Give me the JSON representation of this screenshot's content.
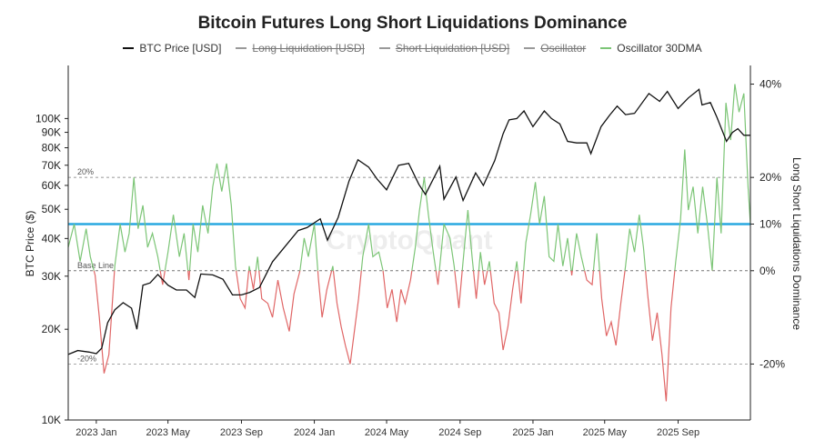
{
  "chart_data": {
    "type": "line",
    "title": "Bitcoin Futures Long Short Liquidations Dominance",
    "ylabel_left": "BTC Price ($)",
    "ylabel_right": "Long Short Liquidations Dominance",
    "left_axis_scale": "log",
    "ylim_left": [
      10000,
      150000
    ],
    "ylim_right": [
      -32,
      44
    ],
    "left_ticks": [
      {
        "value": 10000,
        "label": "10K"
      },
      {
        "value": 20000,
        "label": "20K"
      },
      {
        "value": 30000,
        "label": "30K"
      },
      {
        "value": 40000,
        "label": "40K"
      },
      {
        "value": 50000,
        "label": "50K"
      },
      {
        "value": 60000,
        "label": "60K"
      },
      {
        "value": 70000,
        "label": "70K"
      },
      {
        "value": 80000,
        "label": "80K"
      },
      {
        "value": 90000,
        "label": "90K"
      },
      {
        "value": 100000,
        "label": "100K"
      }
    ],
    "right_ticks": [
      {
        "value": 40,
        "label": "40%"
      },
      {
        "value": 20,
        "label": "20%"
      },
      {
        "value": 10,
        "label": "10%"
      },
      {
        "value": 0,
        "label": "0%"
      },
      {
        "value": -20,
        "label": "-20%"
      }
    ],
    "x_ticks": [
      "2023 Jan",
      "2023 May",
      "2023 Sep",
      "2024 Jan",
      "2024 May",
      "2024 Sep",
      "2025 Jan",
      "2025 May",
      "2025 Sep"
    ],
    "x_range": [
      "2022-11-15",
      "2025-12-31"
    ],
    "reference_lines": [
      {
        "label": "20%",
        "value": 20,
        "style": "dashed"
      },
      {
        "label": "Base Line",
        "value": 0,
        "style": "dashed"
      },
      {
        "label": "-20%",
        "value": -20,
        "style": "dashed"
      }
    ],
    "highlight_line": {
      "value": 10,
      "color": "#29a8e0"
    },
    "legend_position": "top-center",
    "legend": [
      {
        "name": "BTC Price [USD]",
        "color": "#111111",
        "visible": true
      },
      {
        "name": "Long Liquidation [USD]",
        "color": "#999999",
        "visible": false
      },
      {
        "name": "Short Liquidation [USD]",
        "color": "#999999",
        "visible": false
      },
      {
        "name": "Oscillator",
        "color": "#999999",
        "visible": false
      },
      {
        "name": "Oscillator 30DMA",
        "color": "#7cc576",
        "visible": true
      }
    ],
    "colors": {
      "positive": "#7cc576",
      "negative": "#e06666",
      "price": "#111111"
    },
    "watermark": "CryptoQuant",
    "series": [
      {
        "name": "BTC Price [USD]",
        "axis": "left",
        "points": [
          [
            "2022-11-15",
            16500
          ],
          [
            "2022-12-01",
            17000
          ],
          [
            "2022-12-20",
            16800
          ],
          [
            "2023-01-01",
            16600
          ],
          [
            "2023-01-10",
            17300
          ],
          [
            "2023-01-20",
            21000
          ],
          [
            "2023-02-01",
            23200
          ],
          [
            "2023-02-15",
            24500
          ],
          [
            "2023-03-01",
            23500
          ],
          [
            "2023-03-10",
            20000
          ],
          [
            "2023-03-20",
            28000
          ],
          [
            "2023-04-01",
            28500
          ],
          [
            "2023-04-14",
            30400
          ],
          [
            "2023-05-01",
            28000
          ],
          [
            "2023-05-15",
            27000
          ],
          [
            "2023-06-01",
            27000
          ],
          [
            "2023-06-15",
            25500
          ],
          [
            "2023-06-25",
            30500
          ],
          [
            "2023-07-15",
            30300
          ],
          [
            "2023-08-01",
            29300
          ],
          [
            "2023-08-17",
            26000
          ],
          [
            "2023-09-01",
            26000
          ],
          [
            "2023-09-15",
            26500
          ],
          [
            "2023-10-01",
            27500
          ],
          [
            "2023-10-23",
            33500
          ],
          [
            "2023-11-10",
            37000
          ],
          [
            "2023-12-05",
            42500
          ],
          [
            "2023-12-20",
            43500
          ],
          [
            "2024-01-11",
            46500
          ],
          [
            "2024-01-23",
            39500
          ],
          [
            "2024-02-10",
            47000
          ],
          [
            "2024-02-28",
            62000
          ],
          [
            "2024-03-14",
            73000
          ],
          [
            "2024-04-01",
            69000
          ],
          [
            "2024-04-15",
            63000
          ],
          [
            "2024-05-01",
            58000
          ],
          [
            "2024-05-21",
            70000
          ],
          [
            "2024-06-07",
            71000
          ],
          [
            "2024-06-24",
            60500
          ],
          [
            "2024-07-05",
            56000
          ],
          [
            "2024-07-29",
            69500
          ],
          [
            "2024-08-05",
            54000
          ],
          [
            "2024-08-25",
            64000
          ],
          [
            "2024-09-06",
            53500
          ],
          [
            "2024-09-27",
            66000
          ],
          [
            "2024-10-10",
            60000
          ],
          [
            "2024-10-29",
            72500
          ],
          [
            "2024-11-12",
            89000
          ],
          [
            "2024-11-22",
            99000
          ],
          [
            "2024-12-05",
            100000
          ],
          [
            "2024-12-17",
            106000
          ],
          [
            "2025-01-01",
            94000
          ],
          [
            "2025-01-20",
            106000
          ],
          [
            "2025-02-01",
            100000
          ],
          [
            "2025-02-15",
            96000
          ],
          [
            "2025-02-28",
            84000
          ],
          [
            "2025-03-15",
            83000
          ],
          [
            "2025-04-01",
            83000
          ],
          [
            "2025-04-08",
            76500
          ],
          [
            "2025-04-25",
            94000
          ],
          [
            "2025-05-10",
            103000
          ],
          [
            "2025-05-22",
            110000
          ],
          [
            "2025-06-05",
            103000
          ],
          [
            "2025-06-20",
            104000
          ],
          [
            "2025-07-14",
            121000
          ],
          [
            "2025-08-01",
            114000
          ],
          [
            "2025-08-14",
            123000
          ],
          [
            "2025-09-01",
            108000
          ],
          [
            "2025-09-18",
            117000
          ],
          [
            "2025-10-06",
            125000
          ],
          [
            "2025-10-11",
            111000
          ],
          [
            "2025-10-25",
            113000
          ],
          [
            "2025-11-05",
            101000
          ],
          [
            "2025-11-21",
            84000
          ],
          [
            "2025-12-01",
            90000
          ],
          [
            "2025-12-10",
            92500
          ],
          [
            "2025-12-20",
            88000
          ],
          [
            "2025-12-31",
            88000
          ]
        ]
      },
      {
        "name": "Oscillator 30DMA",
        "axis": "right",
        "points": [
          [
            "2022-11-15",
            5
          ],
          [
            "2022-11-25",
            10
          ],
          [
            "2022-12-05",
            2
          ],
          [
            "2022-12-15",
            9
          ],
          [
            "2022-12-22",
            3
          ],
          [
            "2022-12-30",
            -1
          ],
          [
            "2023-01-06",
            -10
          ],
          [
            "2023-01-14",
            -22
          ],
          [
            "2023-01-22",
            -18
          ],
          [
            "2023-02-01",
            1
          ],
          [
            "2023-02-10",
            10
          ],
          [
            "2023-02-18",
            4
          ],
          [
            "2023-02-25",
            8
          ],
          [
            "2023-03-05",
            20
          ],
          [
            "2023-03-12",
            9
          ],
          [
            "2023-03-20",
            14
          ],
          [
            "2023-03-28",
            5
          ],
          [
            "2023-04-05",
            8
          ],
          [
            "2023-04-14",
            3
          ],
          [
            "2023-04-22",
            -3
          ],
          [
            "2023-05-01",
            4
          ],
          [
            "2023-05-10",
            12
          ],
          [
            "2023-05-20",
            3
          ],
          [
            "2023-05-28",
            8
          ],
          [
            "2023-06-05",
            -2
          ],
          [
            "2023-06-12",
            10
          ],
          [
            "2023-06-20",
            4
          ],
          [
            "2023-06-28",
            14
          ],
          [
            "2023-07-07",
            8
          ],
          [
            "2023-07-15",
            18
          ],
          [
            "2023-07-22",
            23
          ],
          [
            "2023-07-30",
            17
          ],
          [
            "2023-08-07",
            23
          ],
          [
            "2023-08-15",
            14
          ],
          [
            "2023-08-22",
            1
          ],
          [
            "2023-08-30",
            -6
          ],
          [
            "2023-09-07",
            -8
          ],
          [
            "2023-09-14",
            1
          ],
          [
            "2023-09-21",
            -4
          ],
          [
            "2023-09-28",
            3
          ],
          [
            "2023-10-05",
            -6
          ],
          [
            "2023-10-15",
            -7
          ],
          [
            "2023-10-23",
            -10
          ],
          [
            "2023-11-01",
            -2
          ],
          [
            "2023-11-10",
            -8
          ],
          [
            "2023-11-20",
            -13
          ],
          [
            "2023-11-28",
            -5
          ],
          [
            "2023-12-08",
            0
          ],
          [
            "2023-12-15",
            7
          ],
          [
            "2023-12-22",
            3
          ],
          [
            "2024-01-01",
            10
          ],
          [
            "2024-01-08",
            -2
          ],
          [
            "2024-01-14",
            -10
          ],
          [
            "2024-01-22",
            -4
          ],
          [
            "2024-02-01",
            1
          ],
          [
            "2024-02-08",
            -7
          ],
          [
            "2024-02-15",
            -12
          ],
          [
            "2024-02-22",
            -16
          ],
          [
            "2024-03-01",
            -20
          ],
          [
            "2024-03-08",
            -13
          ],
          [
            "2024-03-15",
            -6
          ],
          [
            "2024-03-22",
            3
          ],
          [
            "2024-04-01",
            10
          ],
          [
            "2024-04-08",
            3
          ],
          [
            "2024-04-18",
            4
          ],
          [
            "2024-04-25",
            0
          ],
          [
            "2024-05-02",
            -8
          ],
          [
            "2024-05-10",
            -4
          ],
          [
            "2024-05-18",
            -11
          ],
          [
            "2024-05-25",
            -4
          ],
          [
            "2024-06-01",
            -7
          ],
          [
            "2024-06-10",
            -2
          ],
          [
            "2024-06-18",
            5
          ],
          [
            "2024-06-25",
            13
          ],
          [
            "2024-07-03",
            20
          ],
          [
            "2024-07-10",
            12
          ],
          [
            "2024-07-18",
            4
          ],
          [
            "2024-07-26",
            -3
          ],
          [
            "2024-08-05",
            10
          ],
          [
            "2024-08-15",
            7
          ],
          [
            "2024-08-22",
            1
          ],
          [
            "2024-08-30",
            -8
          ],
          [
            "2024-09-06",
            2
          ],
          [
            "2024-09-14",
            13
          ],
          [
            "2024-09-21",
            3
          ],
          [
            "2024-09-28",
            -6
          ],
          [
            "2024-10-05",
            4
          ],
          [
            "2024-10-12",
            -3
          ],
          [
            "2024-10-20",
            2
          ],
          [
            "2024-10-28",
            -7
          ],
          [
            "2024-11-05",
            -9
          ],
          [
            "2024-11-12",
            -17
          ],
          [
            "2024-11-20",
            -12
          ],
          [
            "2024-11-28",
            -4
          ],
          [
            "2024-12-05",
            2
          ],
          [
            "2024-12-12",
            -7
          ],
          [
            "2024-12-20",
            6
          ],
          [
            "2024-12-28",
            12
          ],
          [
            "2025-01-05",
            19
          ],
          [
            "2025-01-12",
            10
          ],
          [
            "2025-01-20",
            16
          ],
          [
            "2025-01-28",
            3
          ],
          [
            "2025-02-05",
            2
          ],
          [
            "2025-02-12",
            10
          ],
          [
            "2025-02-20",
            1
          ],
          [
            "2025-02-28",
            7
          ],
          [
            "2025-03-07",
            -1
          ],
          [
            "2025-03-15",
            8
          ],
          [
            "2025-03-23",
            3
          ],
          [
            "2025-04-01",
            -2
          ],
          [
            "2025-04-10",
            -3
          ],
          [
            "2025-04-18",
            8
          ],
          [
            "2025-04-26",
            -6
          ],
          [
            "2025-05-04",
            -14
          ],
          [
            "2025-05-12",
            -11
          ],
          [
            "2025-05-20",
            -16
          ],
          [
            "2025-05-28",
            -7
          ],
          [
            "2025-06-05",
            1
          ],
          [
            "2025-06-12",
            9
          ],
          [
            "2025-06-20",
            4
          ],
          [
            "2025-06-28",
            12
          ],
          [
            "2025-07-05",
            5
          ],
          [
            "2025-07-12",
            -5
          ],
          [
            "2025-07-20",
            -15
          ],
          [
            "2025-07-28",
            -9
          ],
          [
            "2025-08-05",
            -18
          ],
          [
            "2025-08-12",
            -28
          ],
          [
            "2025-08-20",
            -8
          ],
          [
            "2025-08-28",
            2
          ],
          [
            "2025-09-05",
            11
          ],
          [
            "2025-09-12",
            26
          ],
          [
            "2025-09-18",
            13
          ],
          [
            "2025-09-26",
            18
          ],
          [
            "2025-10-04",
            8
          ],
          [
            "2025-10-12",
            18
          ],
          [
            "2025-10-20",
            10
          ],
          [
            "2025-10-28",
            0
          ],
          [
            "2025-11-05",
            20
          ],
          [
            "2025-11-12",
            8
          ],
          [
            "2025-11-20",
            36
          ],
          [
            "2025-11-28",
            28
          ],
          [
            "2025-12-05",
            40
          ],
          [
            "2025-12-12",
            34
          ],
          [
            "2025-12-20",
            38
          ],
          [
            "2025-12-27",
            18
          ],
          [
            "2025-12-31",
            10
          ]
        ]
      }
    ]
  }
}
